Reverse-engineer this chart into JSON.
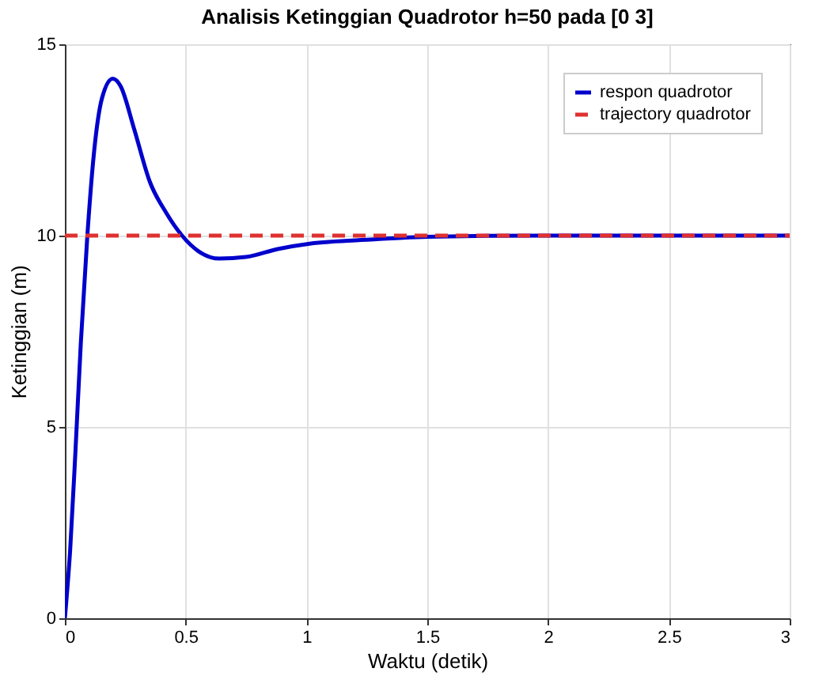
{
  "chart_data": {
    "type": "line",
    "title": "Analisis Ketinggian Quadrotor h=50 pada [0 3]",
    "xlabel": "Waktu (detik)",
    "ylabel": "Ketinggian (m)",
    "x": [
      0,
      0.022,
      0.044,
      0.066,
      0.093,
      0.121,
      0.154,
      0.198,
      0.231,
      0.286,
      0.352,
      0.419,
      0.485,
      0.551,
      0.639,
      0.749,
      0.881,
      1.013,
      1.28,
      1.5,
      2,
      2.5,
      3
    ],
    "series": [
      {
        "name": "respon quadrotor",
        "color": "#0000cc",
        "line_style": "solid",
        "values": [
          0,
          1.8,
          4.4,
          7.2,
          10.0,
          12.2,
          13.6,
          14.1,
          13.9,
          12.8,
          11.4,
          10.6,
          10.0,
          9.6,
          9.4,
          9.44,
          9.65,
          9.79,
          9.9,
          9.97,
          10,
          10,
          10
        ]
      },
      {
        "name": "trajectory quadrotor",
        "color": "#e03030",
        "line_style": "dashed",
        "x": [
          0,
          3
        ],
        "values": [
          10,
          10
        ]
      }
    ],
    "xlim": [
      0,
      3
    ],
    "xticks": [
      0,
      0.5,
      1,
      1.5,
      2,
      2.5,
      3
    ],
    "ylim": [
      0,
      15
    ],
    "yticks": [
      0,
      5,
      10,
      15
    ],
    "grid": true,
    "legend": "top right",
    "marker": "none"
  }
}
